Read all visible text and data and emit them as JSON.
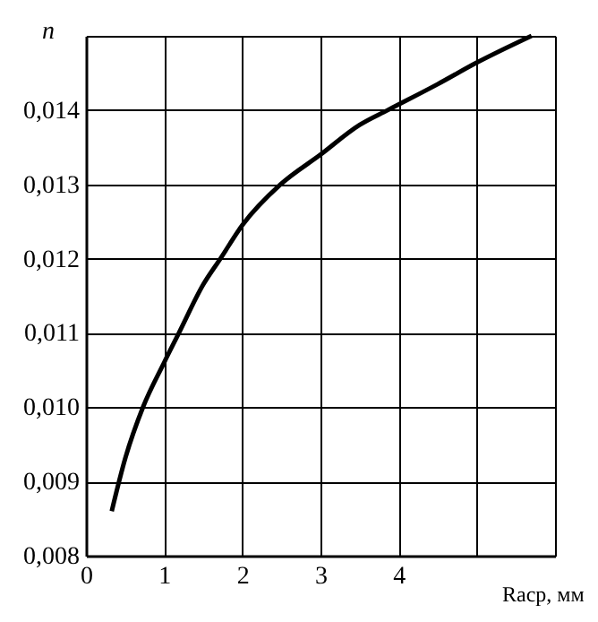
{
  "chart_data": {
    "type": "line",
    "xlabel": "Rаср, мм",
    "ylabel": "n",
    "x": [
      0.33,
      0.5,
      0.73,
      1,
      1.19,
      1.5,
      1.72,
      2,
      2.49,
      3,
      3.5,
      3.86,
      4.5,
      5,
      5.7
    ],
    "series": [
      {
        "color": "#000000",
        "values": [
          0.0086,
          0.0093,
          0.01,
          0.0106,
          0.011,
          0.01165,
          0.012,
          0.01245,
          0.013,
          0.0134,
          0.0138,
          0.014,
          0.01435,
          0.01464,
          0.015
        ]
      }
    ],
    "xlim": [
      0,
      6
    ],
    "ylim": [
      0.008,
      0.015
    ],
    "xticks": [
      0,
      1,
      2,
      3,
      4,
      {
        "value": 5,
        "label": null
      },
      {
        "value": 6,
        "label": null
      }
    ],
    "yticks": [
      {
        "value": 0.008,
        "label": "0,008"
      },
      {
        "value": 0.009,
        "label": "0,009"
      },
      {
        "value": 0.01,
        "label": "0,010"
      },
      {
        "value": 0.011,
        "label": "0,011"
      },
      {
        "value": 0.012,
        "label": "0,012"
      },
      {
        "value": 0.013,
        "label": "0,013"
      },
      {
        "value": 0.014,
        "label": "0,014"
      },
      {
        "value": 0.015,
        "label": null
      }
    ],
    "grid": true,
    "marker": "none",
    "line_style": "solid"
  }
}
